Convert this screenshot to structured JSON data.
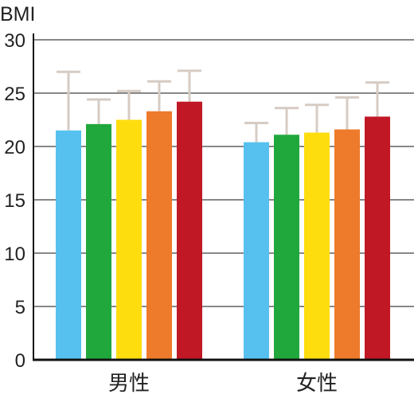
{
  "chart_data": {
    "type": "bar",
    "title": "",
    "xlabel": "",
    "ylabel": "BMI",
    "ylim": [
      0,
      30
    ],
    "yticks": [
      0,
      5,
      10,
      15,
      20,
      25,
      30
    ],
    "grid": true,
    "categories": [
      "男性",
      "女性"
    ],
    "series": [
      {
        "color": "#56c1ee",
        "values": [
          21.5,
          20.4
        ],
        "error": [
          5.5,
          1.8
        ]
      },
      {
        "color": "#21a83c",
        "values": [
          22.1,
          21.1
        ],
        "error": [
          2.3,
          2.5
        ]
      },
      {
        "color": "#fedd0e",
        "values": [
          22.5,
          21.3
        ],
        "error": [
          2.7,
          2.6
        ]
      },
      {
        "color": "#ee7a2b",
        "values": [
          23.3,
          21.6
        ],
        "error": [
          2.8,
          3.0
        ]
      },
      {
        "color": "#c11826",
        "values": [
          24.2,
          22.8
        ],
        "error": [
          2.9,
          3.2
        ]
      }
    ],
    "error_bar_color": "#d6ccc4"
  }
}
